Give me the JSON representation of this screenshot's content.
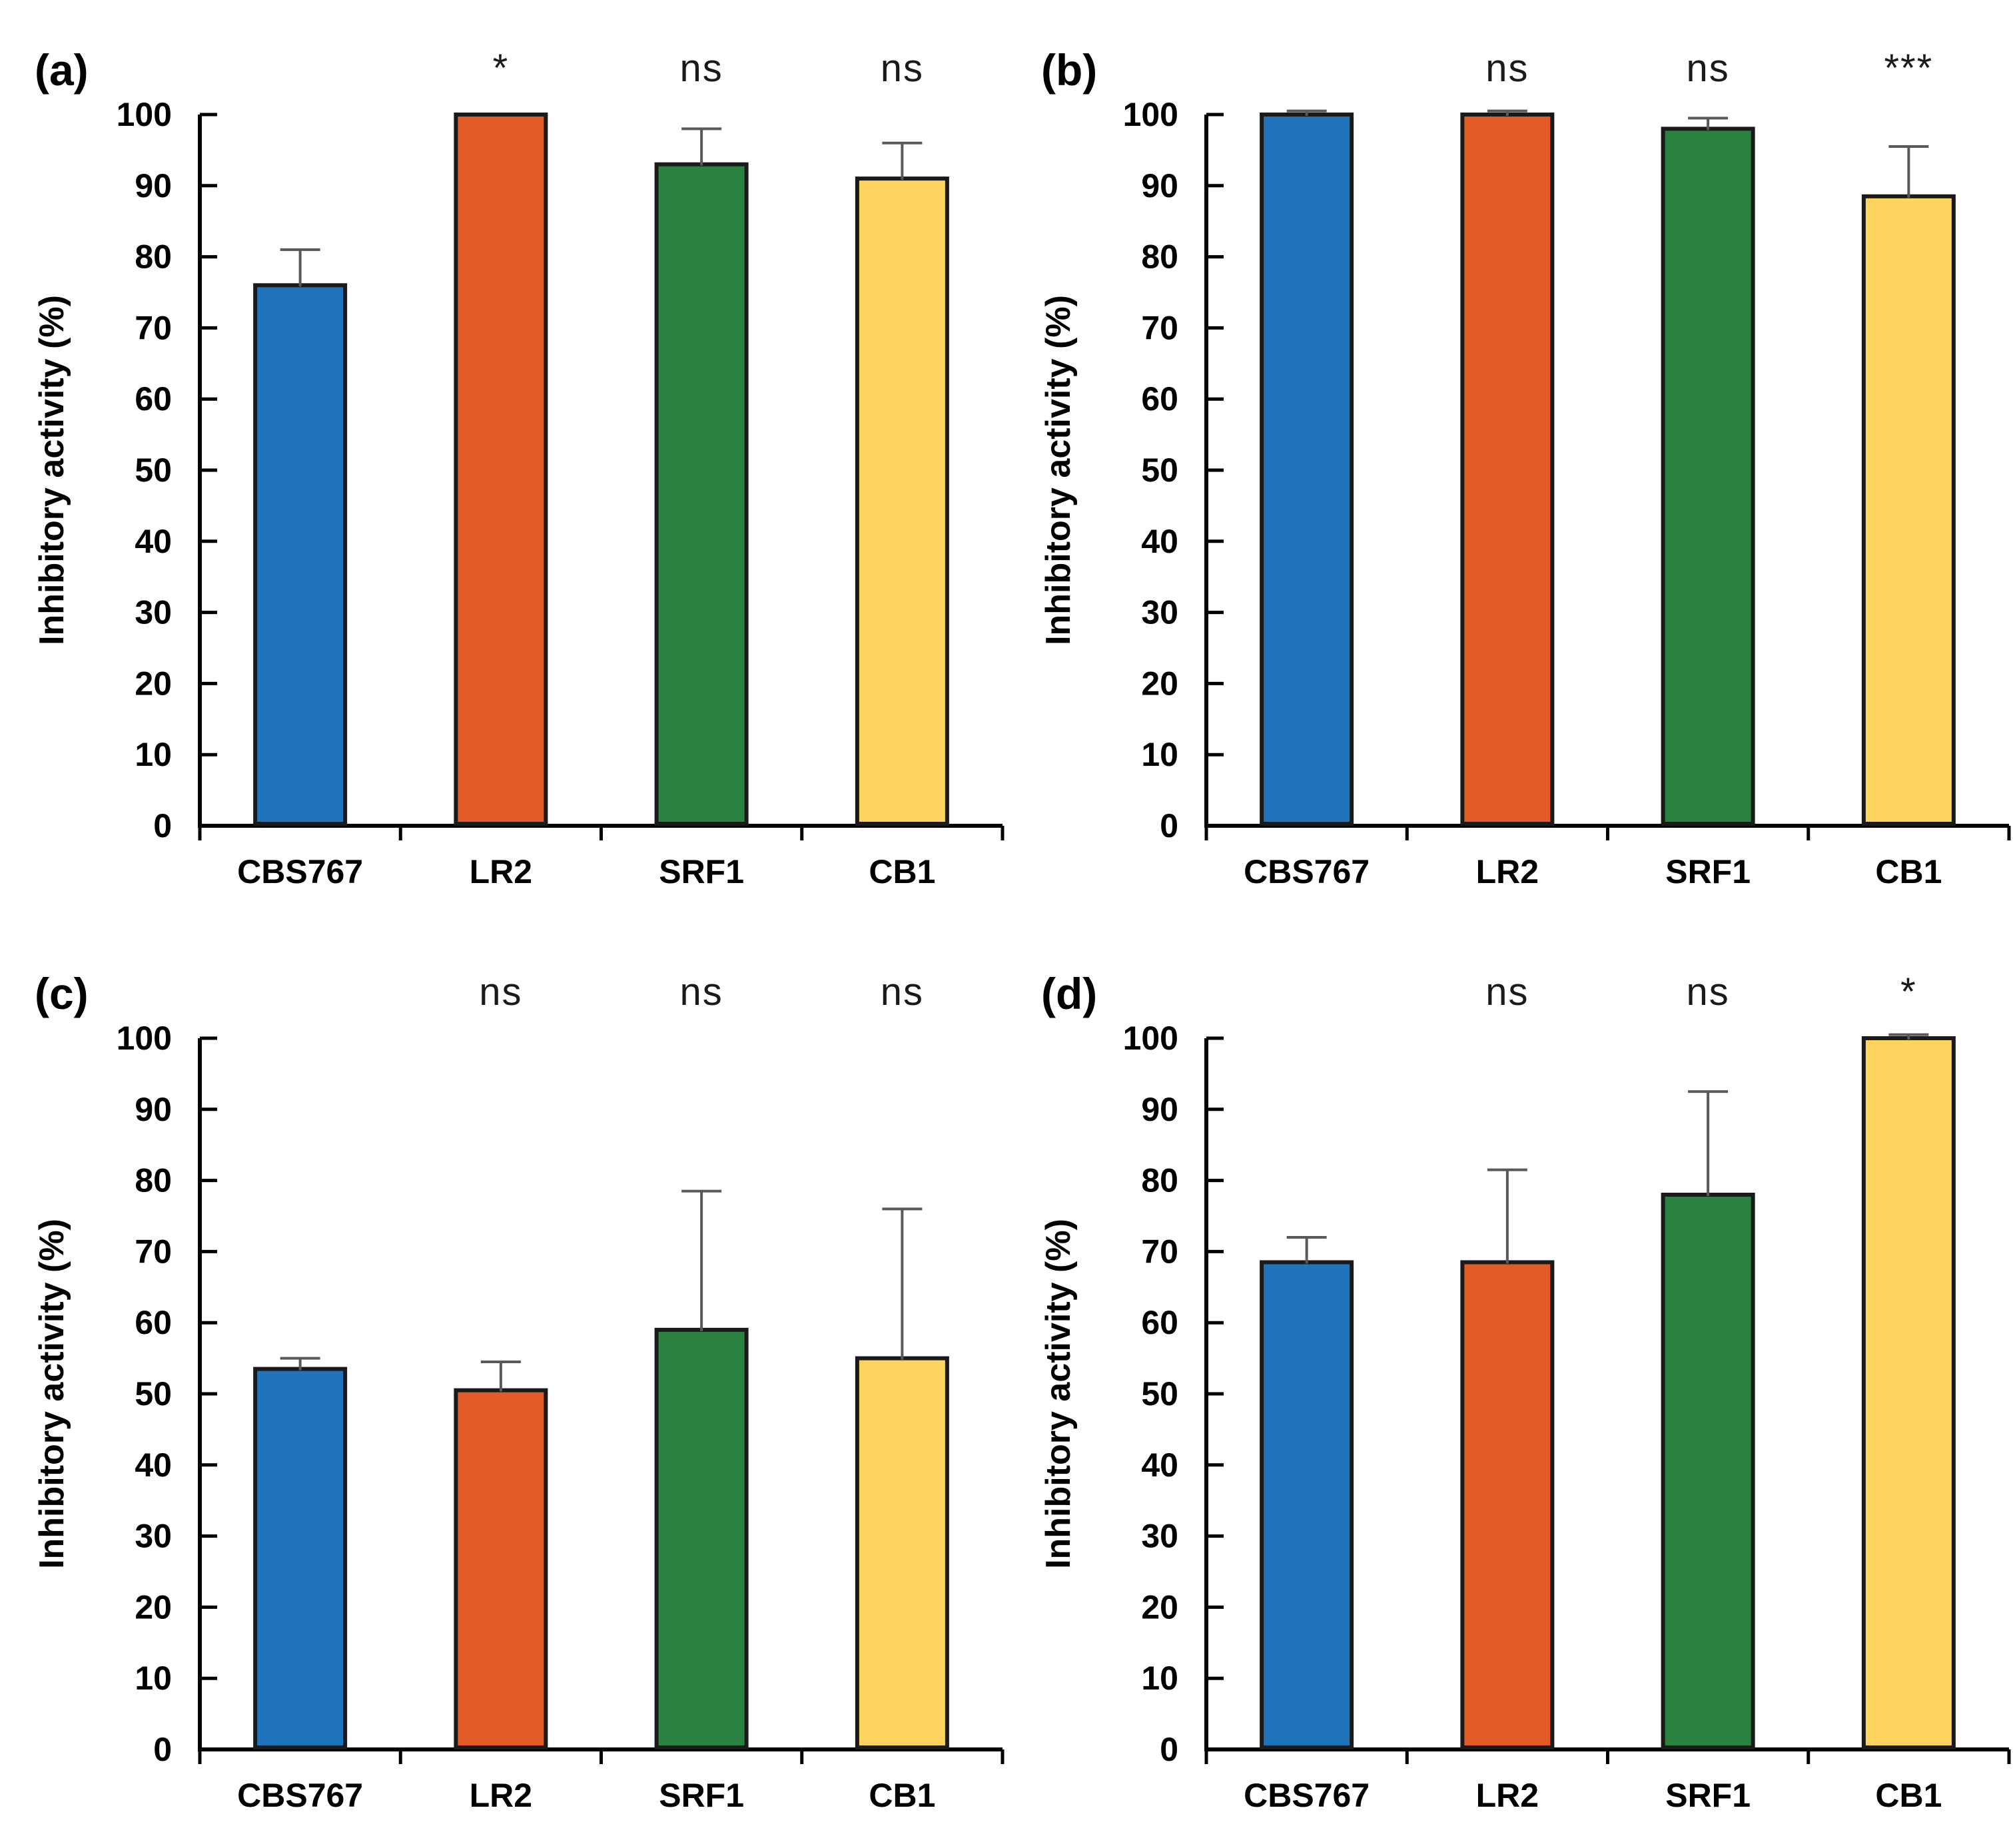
{
  "figure": {
    "description": "Four-panel bar chart figure comparing inhibitory activity of yeast strains",
    "panel_labels": [
      "(a)",
      "(b)",
      "(c)",
      "(d)"
    ],
    "ylabel": "Inhibitory activity (%)",
    "categories": [
      "CBS767",
      "LR2",
      "SRF1",
      "CB1"
    ],
    "colors": {
      "bar_blue": "#2074BC",
      "bar_orange": "#E15C26",
      "bar_green": "#2A823E",
      "bar_yellow": "#FFD45E",
      "bar_border": "#1A1A1A",
      "error_bar": "#595959",
      "axis": "#000000",
      "text": "#000000"
    }
  },
  "chart_data": [
    {
      "type": "bar",
      "panel_label": "(a)",
      "categories": [
        "CBS767",
        "LR2",
        "SRF1",
        "CB1"
      ],
      "values": [
        76,
        100,
        93,
        91
      ],
      "errors_upper": [
        5,
        0,
        5,
        5
      ],
      "significance": [
        "",
        "*",
        "ns",
        "ns"
      ],
      "ylabel": "Inhibitory activity (%)",
      "ylim": [
        0,
        100
      ],
      "ytick_step": 10,
      "bar_colors": [
        "#2074BC",
        "#E15C26",
        "#2A823E",
        "#FFD45E"
      ],
      "legend_position": "none",
      "grid": "off"
    },
    {
      "type": "bar",
      "panel_label": "(b)",
      "categories": [
        "CBS767",
        "LR2",
        "SRF1",
        "CB1"
      ],
      "values": [
        100,
        100,
        98,
        88.5
      ],
      "errors_upper": [
        0.5,
        0.5,
        1.5,
        7
      ],
      "significance": [
        "",
        "ns",
        "ns",
        "***"
      ],
      "ylabel": "Inhibitory activity (%)",
      "ylim": [
        0,
        100
      ],
      "ytick_step": 10,
      "bar_colors": [
        "#2074BC",
        "#E15C26",
        "#2A823E",
        "#FFD45E"
      ],
      "legend_position": "none",
      "grid": "off"
    },
    {
      "type": "bar",
      "panel_label": "(c)",
      "categories": [
        "CBS767",
        "LR2",
        "SRF1",
        "CB1"
      ],
      "values": [
        53.5,
        50.5,
        59,
        55
      ],
      "errors_upper": [
        1.5,
        4,
        19.5,
        21
      ],
      "significance": [
        "",
        "ns",
        "ns",
        "ns"
      ],
      "ylabel": "Inhibitory activity (%)",
      "ylim": [
        0,
        100
      ],
      "ytick_step": 10,
      "bar_colors": [
        "#2074BC",
        "#E15C26",
        "#2A823E",
        "#FFD45E"
      ],
      "legend_position": "none",
      "grid": "off"
    },
    {
      "type": "bar",
      "panel_label": "(d)",
      "categories": [
        "CBS767",
        "LR2",
        "SRF1",
        "CB1"
      ],
      "values": [
        68.5,
        68.5,
        78,
        100
      ],
      "errors_upper": [
        3.5,
        13,
        14.5,
        0.5
      ],
      "significance": [
        "",
        "ns",
        "ns",
        "*"
      ],
      "ylabel": "Inhibitory activity (%)",
      "ylim": [
        0,
        100
      ],
      "ytick_step": 10,
      "bar_colors": [
        "#2074BC",
        "#E15C26",
        "#2A823E",
        "#FFD45E"
      ],
      "legend_position": "none",
      "grid": "off"
    }
  ]
}
